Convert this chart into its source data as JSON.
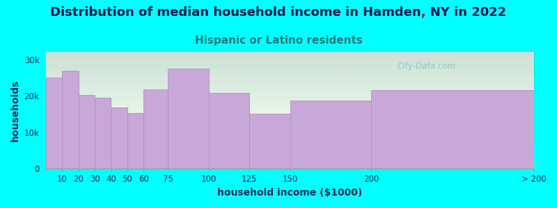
{
  "title": "Distribution of median household income in Hamden, NY in 2022",
  "subtitle": "Hispanic or Latino residents",
  "xlabel": "household income ($1000)",
  "ylabel": "households",
  "background_color": "#00FFFF",
  "plot_bg_top": "#e8f5e8",
  "plot_bg_bottom": "#ffffff",
  "bar_color": "#c8a8d8",
  "bar_edge_color": "#b090c0",
  "title_color": "#1a1a4a",
  "subtitle_color": "#2a7a7a",
  "axis_label_color": "#2a2a5a",
  "tick_color": "#2a2a5a",
  "categories": [
    "10",
    "20",
    "30",
    "40",
    "50",
    "60",
    "75",
    "100",
    "125",
    "150",
    "200",
    "> 200"
  ],
  "bin_edges": [
    0,
    10,
    20,
    30,
    40,
    50,
    60,
    75,
    100,
    125,
    150,
    200,
    300
  ],
  "values": [
    25000,
    26800,
    20200,
    19500,
    16800,
    15200,
    21800,
    27500,
    20800,
    15000,
    18700,
    21500
  ],
  "ylim": [
    0,
    32000
  ],
  "yticks": [
    0,
    10000,
    20000,
    30000
  ],
  "ytick_labels": [
    "0",
    "10k",
    "20k",
    "30k"
  ],
  "title_fontsize": 13,
  "subtitle_fontsize": 11,
  "axis_label_fontsize": 10,
  "tick_fontsize": 8.5,
  "watermark_text": "City-Data.com",
  "watermark_color": "#88bbbb"
}
